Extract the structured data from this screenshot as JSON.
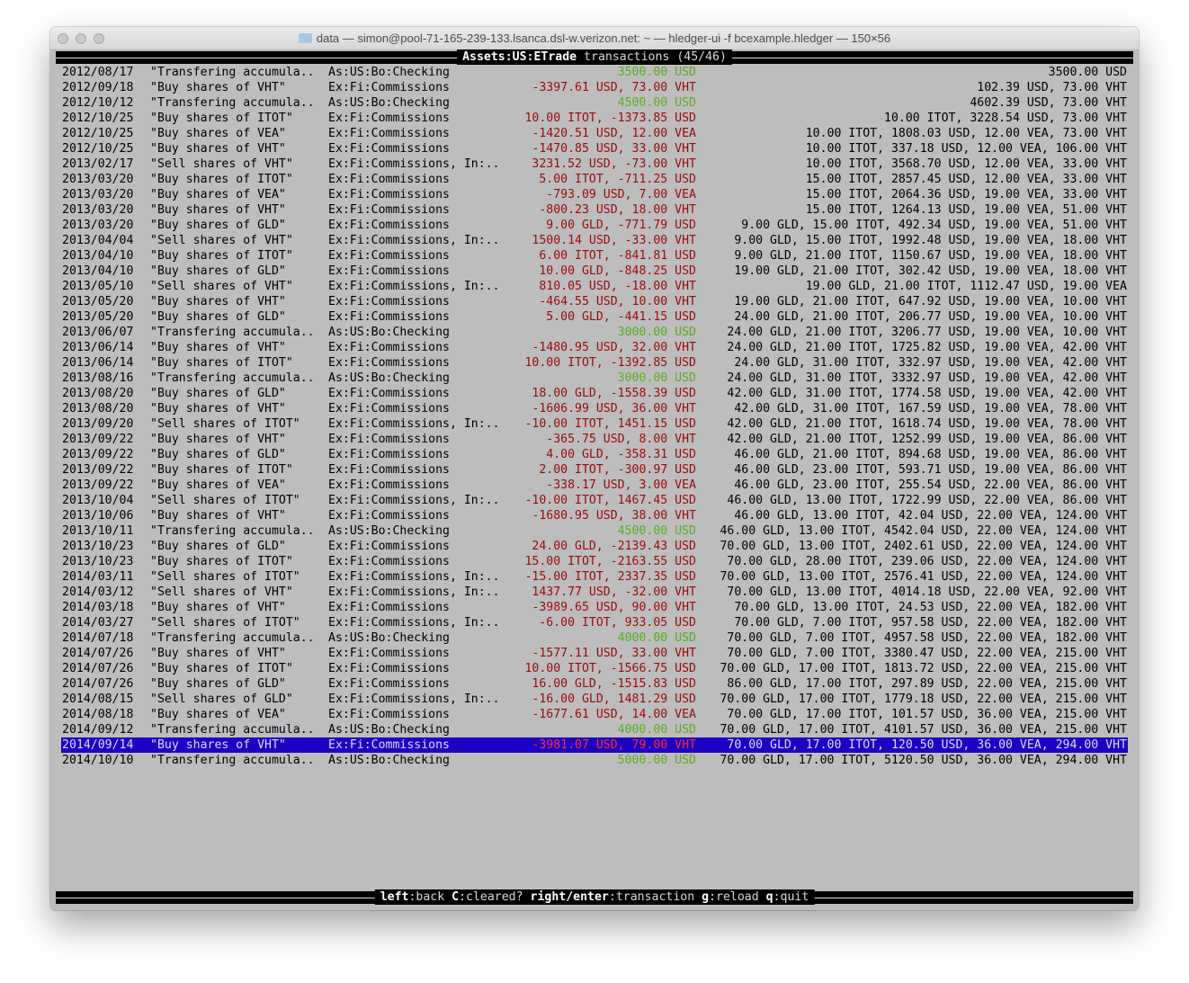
{
  "window": {
    "title": "data — simon@pool-71-165-239-133.lsanca.dsl-w.verizon.net: ~ — hledger-ui -f bcexample.hledger — 150×56"
  },
  "header": {
    "account": "Assets:US:ETrade",
    "label": "transactions",
    "position": "(45/46)"
  },
  "colors": {
    "negative": "#9a0a0a",
    "positive": "#5aad1e",
    "selection": "#1c00c4",
    "background": "#bdbdbd"
  },
  "selected_index": 44,
  "rows": [
    {
      "d": "2012/08/17",
      "desc": "\"Transfering accumula..",
      "acct": "As:US:Bo:Checking",
      "amt": "3500.00 USD",
      "c": "g",
      "bal": "3500.00 USD"
    },
    {
      "d": "2012/09/18",
      "desc": "\"Buy shares of VHT\"",
      "acct": "Ex:Fi:Commissions",
      "amt": "-3397.61 USD, 73.00 VHT",
      "c": "r",
      "bal": "102.39 USD, 73.00 VHT"
    },
    {
      "d": "2012/10/12",
      "desc": "\"Transfering accumula..",
      "acct": "As:US:Bo:Checking",
      "amt": "4500.00 USD",
      "c": "g",
      "bal": "4602.39 USD, 73.00 VHT"
    },
    {
      "d": "2012/10/25",
      "desc": "\"Buy shares of ITOT\"",
      "acct": "Ex:Fi:Commissions",
      "amt": "10.00 ITOT, -1373.85 USD",
      "c": "r",
      "bal": "10.00 ITOT, 3228.54 USD, 73.00 VHT"
    },
    {
      "d": "2012/10/25",
      "desc": "\"Buy shares of VEA\"",
      "acct": "Ex:Fi:Commissions",
      "amt": "-1420.51 USD, 12.00 VEA",
      "c": "r",
      "bal": "10.00 ITOT, 1808.03 USD, 12.00 VEA, 73.00 VHT"
    },
    {
      "d": "2012/10/25",
      "desc": "\"Buy shares of VHT\"",
      "acct": "Ex:Fi:Commissions",
      "amt": "-1470.85 USD, 33.00 VHT",
      "c": "r",
      "bal": "10.00 ITOT, 337.18 USD, 12.00 VEA, 106.00 VHT"
    },
    {
      "d": "2013/02/17",
      "desc": "\"Sell shares of VHT\"",
      "acct": "Ex:Fi:Commissions, In:..",
      "amt": "3231.52 USD, -73.00 VHT",
      "c": "r",
      "bal": "10.00 ITOT, 3568.70 USD, 12.00 VEA, 33.00 VHT"
    },
    {
      "d": "2013/03/20",
      "desc": "\"Buy shares of ITOT\"",
      "acct": "Ex:Fi:Commissions",
      "amt": "5.00 ITOT, -711.25 USD",
      "c": "r",
      "bal": "15.00 ITOT, 2857.45 USD, 12.00 VEA, 33.00 VHT"
    },
    {
      "d": "2013/03/20",
      "desc": "\"Buy shares of VEA\"",
      "acct": "Ex:Fi:Commissions",
      "amt": "-793.09 USD, 7.00 VEA",
      "c": "r",
      "bal": "15.00 ITOT, 2064.36 USD, 19.00 VEA, 33.00 VHT"
    },
    {
      "d": "2013/03/20",
      "desc": "\"Buy shares of VHT\"",
      "acct": "Ex:Fi:Commissions",
      "amt": "-800.23 USD, 18.00 VHT",
      "c": "r",
      "bal": "15.00 ITOT, 1264.13 USD, 19.00 VEA, 51.00 VHT"
    },
    {
      "d": "2013/03/20",
      "desc": "\"Buy shares of GLD\"",
      "acct": "Ex:Fi:Commissions",
      "amt": "9.00 GLD, -771.79 USD",
      "c": "r",
      "bal": "9.00 GLD, 15.00 ITOT, 492.34 USD, 19.00 VEA, 51.00 VHT"
    },
    {
      "d": "2013/04/04",
      "desc": "\"Sell shares of VHT\"",
      "acct": "Ex:Fi:Commissions, In:..",
      "amt": "1500.14 USD, -33.00 VHT",
      "c": "r",
      "bal": "9.00 GLD, 15.00 ITOT, 1992.48 USD, 19.00 VEA, 18.00 VHT"
    },
    {
      "d": "2013/04/10",
      "desc": "\"Buy shares of ITOT\"",
      "acct": "Ex:Fi:Commissions",
      "amt": "6.00 ITOT, -841.81 USD",
      "c": "r",
      "bal": "9.00 GLD, 21.00 ITOT, 1150.67 USD, 19.00 VEA, 18.00 VHT"
    },
    {
      "d": "2013/04/10",
      "desc": "\"Buy shares of GLD\"",
      "acct": "Ex:Fi:Commissions",
      "amt": "10.00 GLD, -848.25 USD",
      "c": "r",
      "bal": "19.00 GLD, 21.00 ITOT, 302.42 USD, 19.00 VEA, 18.00 VHT"
    },
    {
      "d": "2013/05/10",
      "desc": "\"Sell shares of VHT\"",
      "acct": "Ex:Fi:Commissions, In:..",
      "amt": "810.05 USD, -18.00 VHT",
      "c": "r",
      "bal": "19.00 GLD, 21.00 ITOT, 1112.47 USD, 19.00 VEA"
    },
    {
      "d": "2013/05/20",
      "desc": "\"Buy shares of VHT\"",
      "acct": "Ex:Fi:Commissions",
      "amt": "-464.55 USD, 10.00 VHT",
      "c": "r",
      "bal": "19.00 GLD, 21.00 ITOT, 647.92 USD, 19.00 VEA, 10.00 VHT"
    },
    {
      "d": "2013/05/20",
      "desc": "\"Buy shares of GLD\"",
      "acct": "Ex:Fi:Commissions",
      "amt": "5.00 GLD, -441.15 USD",
      "c": "r",
      "bal": "24.00 GLD, 21.00 ITOT, 206.77 USD, 19.00 VEA, 10.00 VHT"
    },
    {
      "d": "2013/06/07",
      "desc": "\"Transfering accumula..",
      "acct": "As:US:Bo:Checking",
      "amt": "3000.00 USD",
      "c": "g",
      "bal": "24.00 GLD, 21.00 ITOT, 3206.77 USD, 19.00 VEA, 10.00 VHT"
    },
    {
      "d": "2013/06/14",
      "desc": "\"Buy shares of VHT\"",
      "acct": "Ex:Fi:Commissions",
      "amt": "-1480.95 USD, 32.00 VHT",
      "c": "r",
      "bal": "24.00 GLD, 21.00 ITOT, 1725.82 USD, 19.00 VEA, 42.00 VHT"
    },
    {
      "d": "2013/06/14",
      "desc": "\"Buy shares of ITOT\"",
      "acct": "Ex:Fi:Commissions",
      "amt": "10.00 ITOT, -1392.85 USD",
      "c": "r",
      "bal": "24.00 GLD, 31.00 ITOT, 332.97 USD, 19.00 VEA, 42.00 VHT"
    },
    {
      "d": "2013/08/16",
      "desc": "\"Transfering accumula..",
      "acct": "As:US:Bo:Checking",
      "amt": "3000.00 USD",
      "c": "g",
      "bal": "24.00 GLD, 31.00 ITOT, 3332.97 USD, 19.00 VEA, 42.00 VHT"
    },
    {
      "d": "2013/08/20",
      "desc": "\"Buy shares of GLD\"",
      "acct": "Ex:Fi:Commissions",
      "amt": "18.00 GLD, -1558.39 USD",
      "c": "r",
      "bal": "42.00 GLD, 31.00 ITOT, 1774.58 USD, 19.00 VEA, 42.00 VHT"
    },
    {
      "d": "2013/08/20",
      "desc": "\"Buy shares of VHT\"",
      "acct": "Ex:Fi:Commissions",
      "amt": "-1606.99 USD, 36.00 VHT",
      "c": "r",
      "bal": "42.00 GLD, 31.00 ITOT, 167.59 USD, 19.00 VEA, 78.00 VHT"
    },
    {
      "d": "2013/09/20",
      "desc": "\"Sell shares of ITOT\"",
      "acct": "Ex:Fi:Commissions, In:..",
      "amt": "-10.00 ITOT, 1451.15 USD",
      "c": "r",
      "bal": "42.00 GLD, 21.00 ITOT, 1618.74 USD, 19.00 VEA, 78.00 VHT"
    },
    {
      "d": "2013/09/22",
      "desc": "\"Buy shares of VHT\"",
      "acct": "Ex:Fi:Commissions",
      "amt": "-365.75 USD, 8.00 VHT",
      "c": "r",
      "bal": "42.00 GLD, 21.00 ITOT, 1252.99 USD, 19.00 VEA, 86.00 VHT"
    },
    {
      "d": "2013/09/22",
      "desc": "\"Buy shares of GLD\"",
      "acct": "Ex:Fi:Commissions",
      "amt": "4.00 GLD, -358.31 USD",
      "c": "r",
      "bal": "46.00 GLD, 21.00 ITOT, 894.68 USD, 19.00 VEA, 86.00 VHT"
    },
    {
      "d": "2013/09/22",
      "desc": "\"Buy shares of ITOT\"",
      "acct": "Ex:Fi:Commissions",
      "amt": "2.00 ITOT, -300.97 USD",
      "c": "r",
      "bal": "46.00 GLD, 23.00 ITOT, 593.71 USD, 19.00 VEA, 86.00 VHT"
    },
    {
      "d": "2013/09/22",
      "desc": "\"Buy shares of VEA\"",
      "acct": "Ex:Fi:Commissions",
      "amt": "-338.17 USD, 3.00 VEA",
      "c": "r",
      "bal": "46.00 GLD, 23.00 ITOT, 255.54 USD, 22.00 VEA, 86.00 VHT"
    },
    {
      "d": "2013/10/04",
      "desc": "\"Sell shares of ITOT\"",
      "acct": "Ex:Fi:Commissions, In:..",
      "amt": "-10.00 ITOT, 1467.45 USD",
      "c": "r",
      "bal": "46.00 GLD, 13.00 ITOT, 1722.99 USD, 22.00 VEA, 86.00 VHT"
    },
    {
      "d": "2013/10/06",
      "desc": "\"Buy shares of VHT\"",
      "acct": "Ex:Fi:Commissions",
      "amt": "-1680.95 USD, 38.00 VHT",
      "c": "r",
      "bal": "46.00 GLD, 13.00 ITOT, 42.04 USD, 22.00 VEA, 124.00 VHT"
    },
    {
      "d": "2013/10/11",
      "desc": "\"Transfering accumula..",
      "acct": "As:US:Bo:Checking",
      "amt": "4500.00 USD",
      "c": "g",
      "bal": "46.00 GLD, 13.00 ITOT, 4542.04 USD, 22.00 VEA, 124.00 VHT"
    },
    {
      "d": "2013/10/23",
      "desc": "\"Buy shares of GLD\"",
      "acct": "Ex:Fi:Commissions",
      "amt": "24.00 GLD, -2139.43 USD",
      "c": "r",
      "bal": "70.00 GLD, 13.00 ITOT, 2402.61 USD, 22.00 VEA, 124.00 VHT"
    },
    {
      "d": "2013/10/23",
      "desc": "\"Buy shares of ITOT\"",
      "acct": "Ex:Fi:Commissions",
      "amt": "15.00 ITOT, -2163.55 USD",
      "c": "r",
      "bal": "70.00 GLD, 28.00 ITOT, 239.06 USD, 22.00 VEA, 124.00 VHT"
    },
    {
      "d": "2014/03/11",
      "desc": "\"Sell shares of ITOT\"",
      "acct": "Ex:Fi:Commissions, In:..",
      "amt": "-15.00 ITOT, 2337.35 USD",
      "c": "r",
      "bal": "70.00 GLD, 13.00 ITOT, 2576.41 USD, 22.00 VEA, 124.00 VHT"
    },
    {
      "d": "2014/03/12",
      "desc": "\"Sell shares of VHT\"",
      "acct": "Ex:Fi:Commissions, In:..",
      "amt": "1437.77 USD, -32.00 VHT",
      "c": "r",
      "bal": "70.00 GLD, 13.00 ITOT, 4014.18 USD, 22.00 VEA, 92.00 VHT"
    },
    {
      "d": "2014/03/18",
      "desc": "\"Buy shares of VHT\"",
      "acct": "Ex:Fi:Commissions",
      "amt": "-3989.65 USD, 90.00 VHT",
      "c": "r",
      "bal": "70.00 GLD, 13.00 ITOT, 24.53 USD, 22.00 VEA, 182.00 VHT"
    },
    {
      "d": "2014/03/27",
      "desc": "\"Sell shares of ITOT\"",
      "acct": "Ex:Fi:Commissions, In:..",
      "amt": "-6.00 ITOT, 933.05 USD",
      "c": "r",
      "bal": "70.00 GLD, 7.00 ITOT, 957.58 USD, 22.00 VEA, 182.00 VHT"
    },
    {
      "d": "2014/07/18",
      "desc": "\"Transfering accumula..",
      "acct": "As:US:Bo:Checking",
      "amt": "4000.00 USD",
      "c": "g",
      "bal": "70.00 GLD, 7.00 ITOT, 4957.58 USD, 22.00 VEA, 182.00 VHT"
    },
    {
      "d": "2014/07/26",
      "desc": "\"Buy shares of VHT\"",
      "acct": "Ex:Fi:Commissions",
      "amt": "-1577.11 USD, 33.00 VHT",
      "c": "r",
      "bal": "70.00 GLD, 7.00 ITOT, 3380.47 USD, 22.00 VEA, 215.00 VHT"
    },
    {
      "d": "2014/07/26",
      "desc": "\"Buy shares of ITOT\"",
      "acct": "Ex:Fi:Commissions",
      "amt": "10.00 ITOT, -1566.75 USD",
      "c": "r",
      "bal": "70.00 GLD, 17.00 ITOT, 1813.72 USD, 22.00 VEA, 215.00 VHT"
    },
    {
      "d": "2014/07/26",
      "desc": "\"Buy shares of GLD\"",
      "acct": "Ex:Fi:Commissions",
      "amt": "16.00 GLD, -1515.83 USD",
      "c": "r",
      "bal": "86.00 GLD, 17.00 ITOT, 297.89 USD, 22.00 VEA, 215.00 VHT"
    },
    {
      "d": "2014/08/15",
      "desc": "\"Sell shares of GLD\"",
      "acct": "Ex:Fi:Commissions, In:..",
      "amt": "-16.00 GLD, 1481.29 USD",
      "c": "r",
      "bal": "70.00 GLD, 17.00 ITOT, 1779.18 USD, 22.00 VEA, 215.00 VHT"
    },
    {
      "d": "2014/08/18",
      "desc": "\"Buy shares of VEA\"",
      "acct": "Ex:Fi:Commissions",
      "amt": "-1677.61 USD, 14.00 VEA",
      "c": "r",
      "bal": "70.00 GLD, 17.00 ITOT, 101.57 USD, 36.00 VEA, 215.00 VHT"
    },
    {
      "d": "2014/09/12",
      "desc": "\"Transfering accumula..",
      "acct": "As:US:Bo:Checking",
      "amt": "4000.00 USD",
      "c": "g",
      "bal": "70.00 GLD, 17.00 ITOT, 4101.57 USD, 36.00 VEA, 215.00 VHT"
    },
    {
      "d": "2014/09/14",
      "desc": "\"Buy shares of VHT\"",
      "acct": "Ex:Fi:Commissions",
      "amt": "-3981.07 USD, 79.00 VHT",
      "c": "r",
      "bal": "70.00 GLD, 17.00 ITOT, 120.50 USD, 36.00 VEA, 294.00 VHT"
    },
    {
      "d": "2014/10/10",
      "desc": "\"Transfering accumula..",
      "acct": "As:US:Bo:Checking",
      "amt": "5000.00 USD",
      "c": "g",
      "bal": "70.00 GLD, 17.00 ITOT, 5120.50 USD, 36.00 VEA, 294.00 VHT"
    }
  ],
  "footer": {
    "keys": [
      {
        "key": "left",
        "action": "back"
      },
      {
        "key": "C",
        "action": "cleared?"
      },
      {
        "key": "right/enter",
        "action": "transaction"
      },
      {
        "key": "g",
        "action": "reload"
      },
      {
        "key": "q",
        "action": "quit"
      }
    ]
  }
}
